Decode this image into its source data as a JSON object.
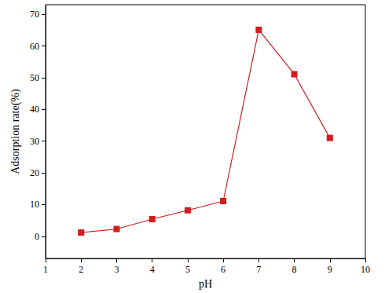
{
  "chart_data": {
    "type": "line",
    "x_label": "pH",
    "y_label": "Adsorption rate(%)",
    "x": [
      2,
      3,
      4,
      5,
      6,
      7,
      8,
      9
    ],
    "values": [
      1.2,
      2.3,
      5.4,
      8.2,
      11.1,
      65.1,
      51.1,
      31.0
    ],
    "color": "#d01c1c",
    "marker": "square",
    "line_style": "solid",
    "xlim": [
      1,
      10
    ],
    "xticks": [
      1,
      2,
      3,
      4,
      5,
      6,
      7,
      8,
      9,
      10
    ],
    "ylim": [
      -7,
      73
    ],
    "yticks": [
      0,
      10,
      20,
      30,
      40,
      50,
      60,
      70
    ],
    "grid": false
  }
}
